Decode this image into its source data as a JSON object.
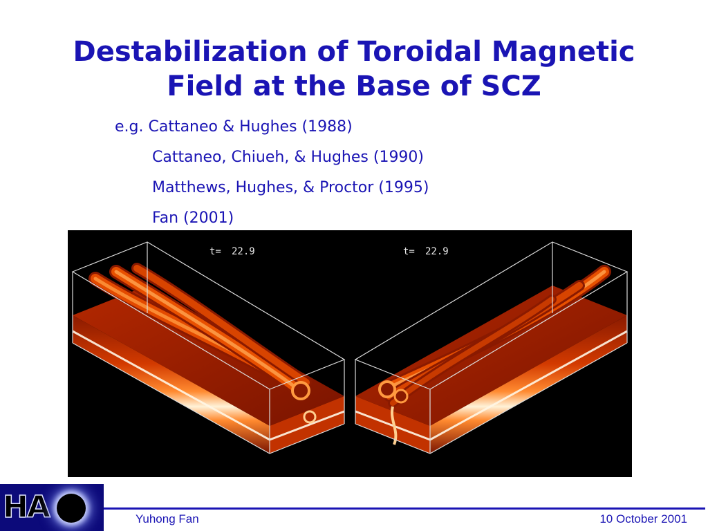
{
  "slide": {
    "title_line1": "Destabilization of Toroidal Magnetic",
    "title_line2": "Field at the Base of SCZ",
    "references": [
      "e.g. Cattaneo & Hughes (1988)",
      "Cattaneo, Chiueh, & Hughes (1990)",
      "Matthews, Hughes, & Proctor (1995)",
      "Fan (2001)"
    ]
  },
  "figure": {
    "left_panel": {
      "time_label": "t=",
      "time_value": "22.9"
    },
    "right_panel": {
      "time_label": "t=",
      "time_value": "22.9"
    },
    "colors": {
      "background": "#000000",
      "flux_dark": "#8a1a00",
      "flux_mid": "#e34a00",
      "flux_bright": "#ffd9a0",
      "box_edge": "#dcdcdc"
    }
  },
  "footer": {
    "logo_text": "HA",
    "logo_icon": "sun-disk-icon",
    "author": "Yuhong Fan",
    "date": "10 October 2001",
    "accent_color": "#1a14b4"
  }
}
